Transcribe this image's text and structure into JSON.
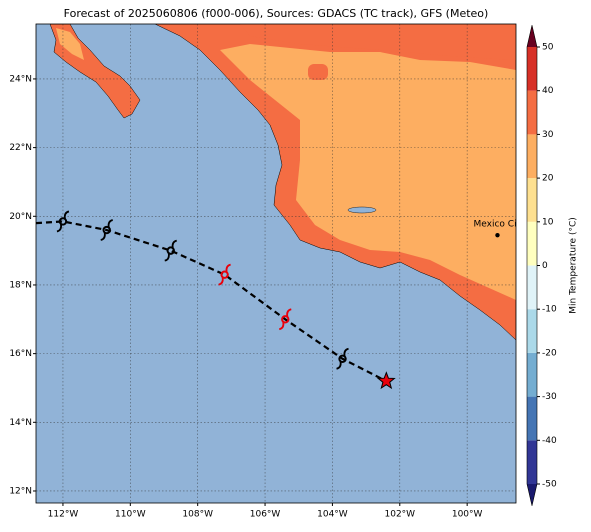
{
  "chart_data": {
    "type": "map",
    "title": "Forecast of 2025060806 (f000-006), Sources: GDACS (TC track), GFS (Meteo)",
    "xlim": [
      -112.8,
      -98.55
    ],
    "ylim": [
      11.65,
      25.6
    ],
    "xticks": [
      {
        "value": -112,
        "label": "112°W"
      },
      {
        "value": -110,
        "label": "110°W"
      },
      {
        "value": -108,
        "label": "108°W"
      },
      {
        "value": -106,
        "label": "106°W"
      },
      {
        "value": -104,
        "label": "104°W"
      },
      {
        "value": -102,
        "label": "102°W"
      },
      {
        "value": -100,
        "label": "100°W"
      }
    ],
    "yticks": [
      {
        "value": 12,
        "label": "12°N"
      },
      {
        "value": 14,
        "label": "14°N"
      },
      {
        "value": 16,
        "label": "16°N"
      },
      {
        "value": 18,
        "label": "18°N"
      },
      {
        "value": 20,
        "label": "20°N"
      },
      {
        "value": 22,
        "label": "22°N"
      },
      {
        "value": 24,
        "label": "24°N"
      }
    ],
    "grid": true,
    "track": {
      "lon": [
        -112.8,
        -112.0,
        -110.7,
        -108.8,
        -107.2,
        -105.4,
        -103.7,
        -102.4
      ],
      "lat": [
        19.8,
        19.85,
        19.6,
        19.0,
        18.3,
        17.0,
        15.85,
        15.2
      ]
    },
    "storm_points": {
      "lon": [
        -112.0,
        -110.7,
        -108.8,
        -107.2,
        -105.4,
        -103.7
      ],
      "lat": [
        19.85,
        19.6,
        19.0,
        18.3,
        17.0,
        15.85
      ],
      "colors": [
        "#000000",
        "#000000",
        "#000000",
        "#e8000b",
        "#e8000b",
        "#000000"
      ]
    },
    "current_position": {
      "lon": -102.4,
      "lat": 15.2,
      "color": "#e8000b"
    },
    "city": {
      "name": "Mexico City",
      "lon": -99.1,
      "lat": 19.45
    },
    "colorbar": {
      "label": "Min Temperature (°C)",
      "lim": [
        -55,
        55
      ],
      "ticks": [
        -50,
        -40,
        -30,
        -20,
        -10,
        0,
        10,
        20,
        30,
        40,
        50
      ],
      "levels": [
        -50,
        -40,
        -30,
        -20,
        -10,
        0,
        10,
        20,
        30,
        40,
        50
      ],
      "colors": [
        "#313695",
        "#4575b4",
        "#74add1",
        "#abd9e9",
        "#e0f3f8",
        "#ffffbf",
        "#fee090",
        "#fdae61",
        "#f46d43",
        "#d73027",
        "#a50026"
      ],
      "under": "#1a1a6e",
      "over": "#67001f"
    }
  }
}
